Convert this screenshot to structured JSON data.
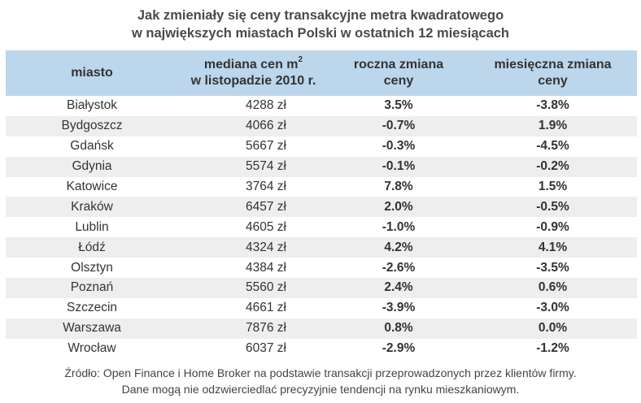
{
  "title": {
    "line1": "Jak zmieniały się ceny transakcyjne metra kwadratowego",
    "line2": "w największych miastach Polski w ostatnich 12 miesiącach"
  },
  "headers": {
    "city": "miasto",
    "median_line1": "mediana cen m",
    "median_sup": "2",
    "median_line2": "w listopadzie 2010 r.",
    "annual_line1": "roczna zmiana",
    "annual_line2": "ceny",
    "monthly_line1": "miesięczna zmiana",
    "monthly_line2": "ceny"
  },
  "rows": [
    {
      "city": "Białystok",
      "price": "4288 zł",
      "annual": "3.5%",
      "monthly": "-3.8%"
    },
    {
      "city": "Bydgoszcz",
      "price": "4066 zł",
      "annual": "-0.7%",
      "monthly": "1.9%"
    },
    {
      "city": "Gdańsk",
      "price": "5667 zł",
      "annual": "-0.3%",
      "monthly": "-4.5%"
    },
    {
      "city": "Gdynia",
      "price": "5574 zł",
      "annual": "-0.1%",
      "monthly": "-0.2%"
    },
    {
      "city": "Katowice",
      "price": "3764 zł",
      "annual": "7.8%",
      "monthly": "1.5%"
    },
    {
      "city": "Kraków",
      "price": "6457 zł",
      "annual": "2.0%",
      "monthly": "-0.5%"
    },
    {
      "city": "Lublin",
      "price": "4605 zł",
      "annual": "-1.0%",
      "monthly": "-0.9%"
    },
    {
      "city": "Łódź",
      "price": "4324 zł",
      "annual": "4.2%",
      "monthly": "4.1%"
    },
    {
      "city": "Olsztyn",
      "price": "4384 zł",
      "annual": "-2.6%",
      "monthly": "-3.5%"
    },
    {
      "city": "Poznań",
      "price": "5560 zł",
      "annual": "2.4%",
      "monthly": "0.6%"
    },
    {
      "city": "Szczecin",
      "price": "4661 zł",
      "annual": "-3.9%",
      "monthly": "-3.0%"
    },
    {
      "city": "Warszawa",
      "price": "7876 zł",
      "annual": "0.8%",
      "monthly": "0.0%"
    },
    {
      "city": "Wrocław",
      "price": "6037 zł",
      "annual": "-2.9%",
      "monthly": "-1.2%"
    }
  ],
  "source": {
    "line1": "Źródło: Open Finance i Home Broker na podstawie transakcji przeprowadzonych przez klientów firmy.",
    "line2": "Dane mogą nie odzwierciedlać precyzyjnie tendencji na rynku mieszkaniowym."
  },
  "colors": {
    "header_bg": "#bcd6ec",
    "alt_row_bg": "#eeeeee"
  }
}
